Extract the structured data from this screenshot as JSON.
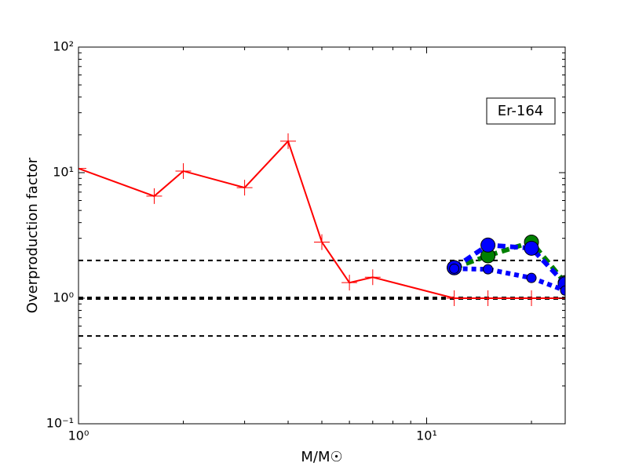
{
  "chart_data": {
    "type": "line",
    "xlabel": "M/M☉",
    "ylabel": "Overproduction factor",
    "annotation": "Er-164",
    "xscale": "log",
    "yscale": "log",
    "xlim": [
      1,
      25
    ],
    "ylim": [
      0.1,
      100
    ],
    "xticks": [
      {
        "value": 1,
        "label": "10⁰"
      },
      {
        "value": 10,
        "label": "10¹"
      }
    ],
    "yticks": [
      {
        "value": 0.1,
        "label": "10⁻¹"
      },
      {
        "value": 1,
        "label": "10⁰"
      },
      {
        "value": 10,
        "label": "10¹"
      },
      {
        "value": 100,
        "label": "10²"
      }
    ],
    "hlines": [
      2,
      1,
      0.5
    ],
    "series": [
      {
        "color": "#ff0000",
        "marker": "plus",
        "linestyle": "solid",
        "x": [
          1,
          1.65,
          2,
          3,
          4,
          5,
          6,
          7,
          12,
          15,
          20,
          25
        ],
        "values": [
          10.8,
          6.5,
          10.3,
          7.6,
          17.8,
          2.8,
          1.33,
          1.47,
          1.0,
          1.0,
          1.0,
          1.0
        ]
      },
      {
        "color": "#008000",
        "marker": "circle",
        "linestyle": "dashed",
        "x": [
          12,
          15,
          20,
          25
        ],
        "values": [
          1.75,
          2.18,
          2.8,
          1.33
        ]
      },
      {
        "color": "#0000ff",
        "marker": "circle",
        "linestyle": "dashed",
        "x": [
          12,
          15,
          20,
          25
        ],
        "values": [
          1.75,
          2.65,
          2.5,
          1.3
        ]
      },
      {
        "color": "#0000ff",
        "marker": "smallcircle",
        "linestyle": "dotted",
        "x": [
          12,
          15,
          20,
          25
        ],
        "values": [
          1.72,
          1.7,
          1.45,
          1.15
        ]
      }
    ]
  }
}
